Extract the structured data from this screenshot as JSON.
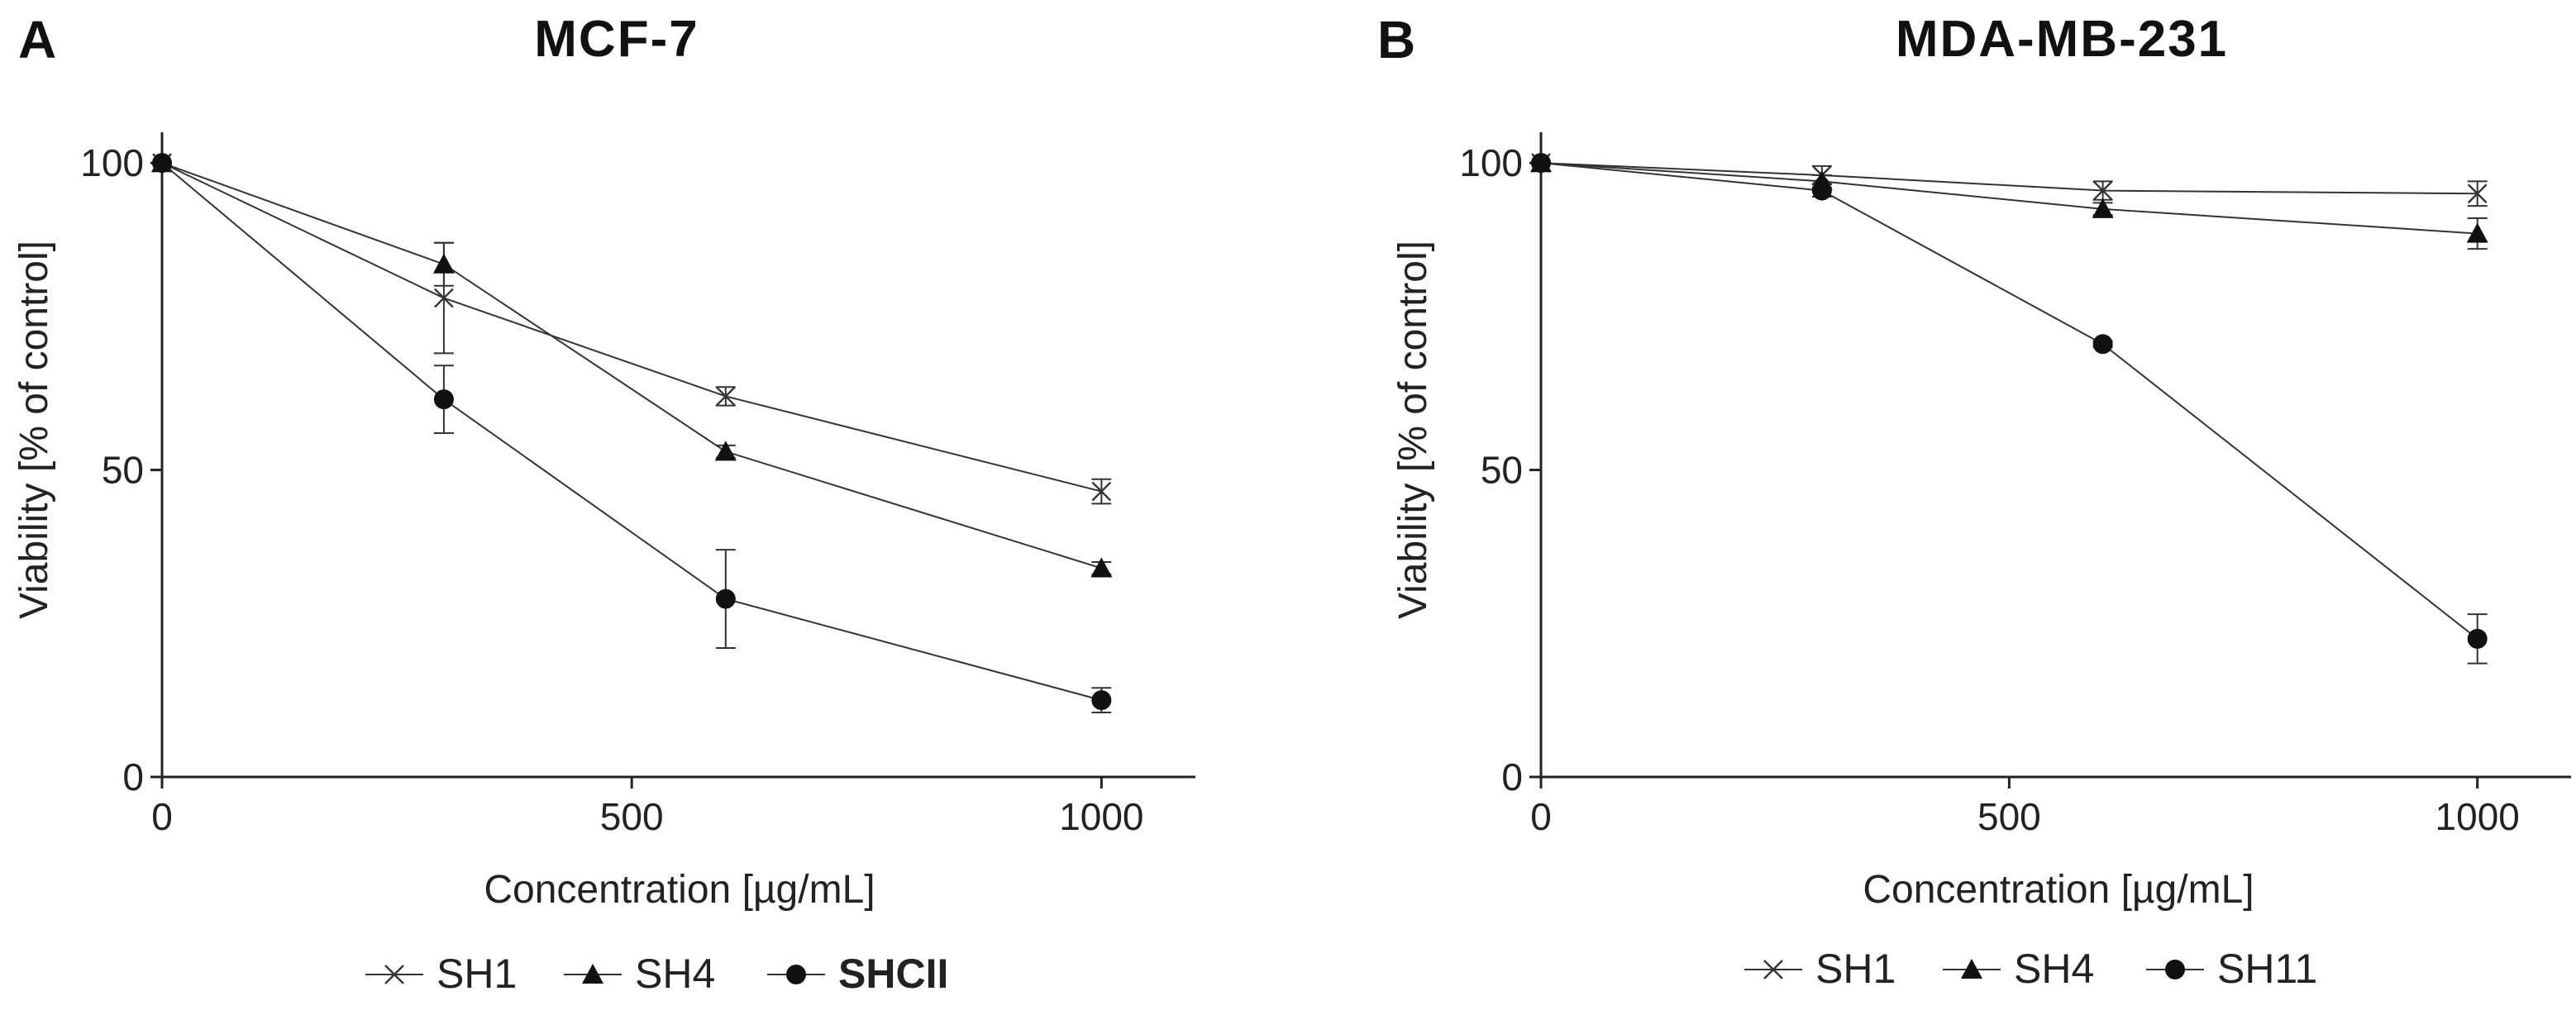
{
  "chart_data": [
    {
      "type": "line",
      "panel": "A",
      "title": "MCF-7",
      "xlabel": "Concentration [µg/mL]",
      "ylabel": "Viability [% of control]",
      "xlim": [
        0,
        1100
      ],
      "ylim": [
        0,
        105
      ],
      "xticks": [
        0,
        500,
        1000
      ],
      "yticks": [
        0,
        50,
        100
      ],
      "x": [
        0,
        300,
        600,
        1000
      ],
      "series": [
        {
          "name": "SH1",
          "marker": "x",
          "label_bold": false,
          "values": [
            100,
            78,
            62,
            46.5
          ],
          "errors": [
            0,
            9,
            1.5,
            2
          ]
        },
        {
          "name": "SH4",
          "marker": "triangle",
          "label_bold": false,
          "values": [
            100,
            83.5,
            53,
            34
          ],
          "errors": [
            0,
            3.5,
            1,
            1
          ]
        },
        {
          "name": "SHCII",
          "marker": "circle",
          "label_bold": true,
          "values": [
            100,
            61.5,
            29,
            12.5
          ],
          "errors": [
            0,
            5.5,
            8,
            2
          ]
        }
      ]
    },
    {
      "type": "line",
      "panel": "B",
      "title": "MDA-MB-231",
      "xlabel": "Concentration [µg/mL]",
      "ylabel": "Viability [% of control]",
      "xlim": [
        0,
        1100
      ],
      "ylim": [
        0,
        105
      ],
      "xticks": [
        0,
        500,
        1000
      ],
      "yticks": [
        0,
        50,
        100
      ],
      "x": [
        0,
        300,
        600,
        1000
      ],
      "series": [
        {
          "name": "SH1",
          "marker": "x",
          "label_bold": false,
          "values": [
            100,
            98,
            95.5,
            95
          ],
          "errors": [
            0,
            1.5,
            1.5,
            2
          ]
        },
        {
          "name": "SH4",
          "marker": "triangle",
          "label_bold": false,
          "values": [
            100,
            97,
            92.5,
            88.5
          ],
          "errors": [
            0,
            1,
            1,
            2.5
          ]
        },
        {
          "name": "SH11",
          "marker": "circle",
          "label_bold": false,
          "values": [
            100,
            95.5,
            70.5,
            22.5
          ],
          "errors": [
            0,
            1,
            0.5,
            4
          ]
        }
      ]
    }
  ]
}
